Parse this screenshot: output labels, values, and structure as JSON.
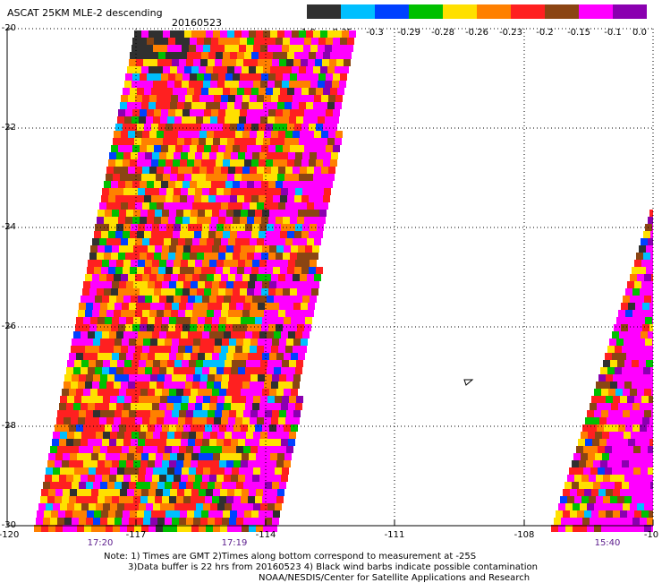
{
  "header": {
    "title": "ASCAT 25KM MLE-2 descending",
    "date": "20160523"
  },
  "colorbar": {
    "labels": [
      "-1.0",
      "-0.35",
      "-0.3",
      "-0.29",
      "-0.28",
      "-0.26",
      "-0.23",
      "-0.2",
      "-0.15",
      "-0.1",
      "0.0"
    ],
    "colors": [
      "#303030",
      "#00bfff",
      "#0040ff",
      "#00c000",
      "#ffe000",
      "#ff8000",
      "#ff2020",
      "#8b4513",
      "#ff00ff",
      "#8a00b0"
    ]
  },
  "map": {
    "lat_labels": [
      "-20",
      "-22",
      "-24",
      "-26",
      "-28",
      "-30"
    ],
    "lon_labels": [
      "-120",
      "-117",
      "-114",
      "-111",
      "-108",
      "-10"
    ],
    "time_labels": [
      "17:20",
      "17:19",
      "15:40"
    ]
  },
  "footer": {
    "line1": "Note: 1) Times are GMT 2)Times along bottom correspond to measurement at -25S",
    "line2": "3)Data buffer is 22 hrs from 20160523 4) Black wind barbs indicate possible contamination",
    "line3": "NOAA/NESDIS/Center for Satellite Applications and Research"
  }
}
